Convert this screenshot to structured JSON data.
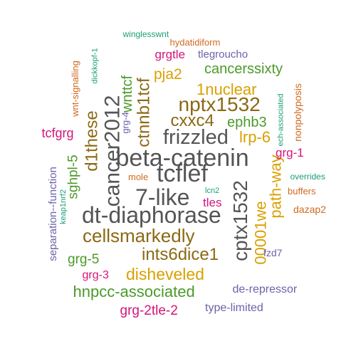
{
  "cloud": {
    "palette": {
      "gray": "#555555",
      "brown": "#8b6914",
      "gold": "#d9a000",
      "green": "#4c9a2a",
      "magenta": "#d4147a",
      "purple": "#6c63a8",
      "orange": "#d2691e",
      "teal": "#1b9e77"
    },
    "words": [
      {
        "text": "beta-catenin",
        "color": "gray",
        "vertical": false
      },
      {
        "text": "dt-diaphorase",
        "color": "gray",
        "vertical": false
      },
      {
        "text": "tcflef",
        "color": "gray",
        "vertical": false
      },
      {
        "text": "7-like",
        "color": "gray",
        "vertical": false
      },
      {
        "text": "frizzled",
        "color": "gray",
        "vertical": false
      },
      {
        "text": "nptx1532",
        "color": "brown",
        "vertical": false
      },
      {
        "text": "cancer2012",
        "color": "gray",
        "vertical": true
      },
      {
        "text": "cptx1532",
        "color": "gray",
        "vertical": true
      },
      {
        "text": "cellsmarkedly",
        "color": "brown",
        "vertical": false
      },
      {
        "text": "ints6dice1",
        "color": "brown",
        "vertical": false
      },
      {
        "text": "ctnnb1tcf",
        "color": "brown",
        "vertical": true
      },
      {
        "text": "cxxc4",
        "color": "brown",
        "vertical": false
      },
      {
        "text": "d1these",
        "color": "brown",
        "vertical": true
      },
      {
        "text": "00001we",
        "color": "gold",
        "vertical": true
      },
      {
        "text": "path-way",
        "color": "gold",
        "vertical": true
      },
      {
        "text": "disheveled",
        "color": "gold",
        "vertical": false
      },
      {
        "text": "hnpcc-associated",
        "color": "green",
        "vertical": false
      },
      {
        "text": "1nuclear",
        "color": "gold",
        "vertical": false
      },
      {
        "text": "lrp-6",
        "color": "gold",
        "vertical": false
      },
      {
        "text": "ephb3",
        "color": "green",
        "vertical": false
      },
      {
        "text": "wnttcf",
        "color": "green",
        "vertical": true
      },
      {
        "text": "pja2",
        "color": "gold",
        "vertical": false
      },
      {
        "text": "cancerssixty",
        "color": "green",
        "vertical": false
      },
      {
        "text": "sghpl-5",
        "color": "green",
        "vertical": true
      },
      {
        "text": "grg-5",
        "color": "green",
        "vertical": false
      },
      {
        "text": "grg-2tle-2",
        "color": "magenta",
        "vertical": false
      },
      {
        "text": "grgtle",
        "color": "magenta",
        "vertical": false
      },
      {
        "text": "tcfgrg",
        "color": "magenta",
        "vertical": false
      },
      {
        "text": "grg-1",
        "color": "magenta",
        "vertical": false
      },
      {
        "text": "tles",
        "color": "magenta",
        "vertical": false
      },
      {
        "text": "grg-3",
        "color": "magenta",
        "vertical": false
      },
      {
        "text": "de-repressor",
        "color": "purple",
        "vertical": false
      },
      {
        "text": "type-limited",
        "color": "purple",
        "vertical": false
      },
      {
        "text": "tlegroucho",
        "color": "purple",
        "vertical": false
      },
      {
        "text": "separation--function",
        "color": "purple",
        "vertical": true
      },
      {
        "text": "fzd7",
        "color": "purple",
        "vertical": false
      },
      {
        "text": "grg-4",
        "color": "purple",
        "vertical": true
      },
      {
        "text": "nonpolyposis",
        "color": "orange",
        "vertical": true
      },
      {
        "text": "wnt-signalling",
        "color": "orange",
        "vertical": true
      },
      {
        "text": "hydatidiform",
        "color": "orange",
        "vertical": false
      },
      {
        "text": "dazap2",
        "color": "orange",
        "vertical": false
      },
      {
        "text": "buffers",
        "color": "orange",
        "vertical": false
      },
      {
        "text": "mole",
        "color": "orange",
        "vertical": false
      },
      {
        "text": "winglesswnt",
        "color": "teal",
        "vertical": false
      },
      {
        "text": "dickkopf-1",
        "color": "teal",
        "vertical": true
      },
      {
        "text": "ech-associated",
        "color": "teal",
        "vertical": true
      },
      {
        "text": "keap1nrf2",
        "color": "teal",
        "vertical": true
      },
      {
        "text": "overrides",
        "color": "teal",
        "vertical": false
      },
      {
        "text": "lcn2",
        "color": "teal",
        "vertical": false
      }
    ]
  }
}
